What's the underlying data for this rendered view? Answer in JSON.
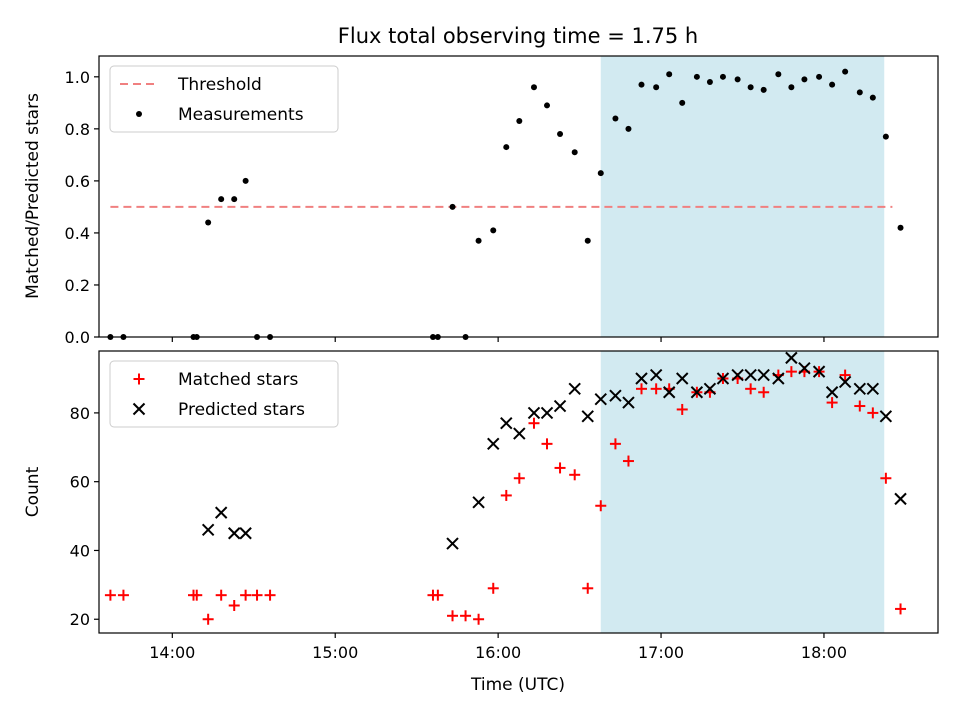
{
  "title": "Flux total observing time = 1.75 h",
  "xlabel": "Time (UTC)",
  "x_ticks": [
    "14:00",
    "15:00",
    "16:00",
    "17:00",
    "18:00"
  ],
  "x_tick_values": [
    14.0,
    15.0,
    16.0,
    17.0,
    18.0
  ],
  "xlim": [
    13.55,
    18.7
  ],
  "shaded_interval": {
    "start": 16.63,
    "end": 18.37,
    "color": "#add8e6"
  },
  "chart_data": [
    {
      "type": "scatter",
      "ylabel": "Matched/Predicted stars",
      "ylim": [
        0.0,
        1.08
      ],
      "y_ticks": [
        "0.0",
        "0.2",
        "0.4",
        "0.6",
        "0.8",
        "1.0"
      ],
      "y_tick_values": [
        0.0,
        0.2,
        0.4,
        0.6,
        0.8,
        1.0
      ],
      "legend": {
        "position": "top-left",
        "entries": [
          "Threshold",
          "Measurements"
        ]
      },
      "threshold": {
        "name": "Threshold",
        "y": 0.5,
        "x_range": [
          13.62,
          18.42
        ],
        "color": "#f08080",
        "style": "dashed"
      },
      "series": [
        {
          "name": "Measurements",
          "color": "#000000",
          "marker": "dot",
          "points": [
            [
              13.62,
              0.0
            ],
            [
              13.7,
              0.0
            ],
            [
              14.13,
              0.0
            ],
            [
              14.15,
              0.0
            ],
            [
              14.22,
              0.44
            ],
            [
              14.3,
              0.53
            ],
            [
              14.38,
              0.53
            ],
            [
              14.45,
              0.6
            ],
            [
              14.52,
              0.0
            ],
            [
              14.6,
              0.0
            ],
            [
              15.6,
              0.0
            ],
            [
              15.63,
              0.0
            ],
            [
              15.72,
              0.5
            ],
            [
              15.8,
              0.0
            ],
            [
              15.88,
              0.37
            ],
            [
              15.97,
              0.41
            ],
            [
              16.05,
              0.73
            ],
            [
              16.13,
              0.83
            ],
            [
              16.22,
              0.96
            ],
            [
              16.3,
              0.89
            ],
            [
              16.38,
              0.78
            ],
            [
              16.47,
              0.71
            ],
            [
              16.55,
              0.37
            ],
            [
              16.63,
              0.63
            ],
            [
              16.72,
              0.84
            ],
            [
              16.8,
              0.8
            ],
            [
              16.88,
              0.97
            ],
            [
              16.97,
              0.96
            ],
            [
              17.05,
              1.01
            ],
            [
              17.13,
              0.9
            ],
            [
              17.22,
              1.0
            ],
            [
              17.3,
              0.98
            ],
            [
              17.38,
              1.0
            ],
            [
              17.47,
              0.99
            ],
            [
              17.55,
              0.96
            ],
            [
              17.63,
              0.95
            ],
            [
              17.72,
              1.01
            ],
            [
              17.8,
              0.96
            ],
            [
              17.88,
              0.99
            ],
            [
              17.97,
              1.0
            ],
            [
              18.05,
              0.97
            ],
            [
              18.13,
              1.02
            ],
            [
              18.22,
              0.94
            ],
            [
              18.3,
              0.92
            ],
            [
              18.38,
              0.77
            ],
            [
              18.47,
              0.42
            ]
          ]
        }
      ]
    },
    {
      "type": "scatter",
      "ylabel": "Count",
      "ylim": [
        16,
        98
      ],
      "y_ticks": [
        "20",
        "40",
        "60",
        "80"
      ],
      "y_tick_values": [
        20,
        40,
        60,
        80
      ],
      "legend": {
        "position": "top-left",
        "entries": [
          "Matched stars",
          "Predicted stars"
        ]
      },
      "series": [
        {
          "name": "Matched stars",
          "color": "#ff0000",
          "marker": "plus",
          "points": [
            [
              13.62,
              27
            ],
            [
              13.7,
              27
            ],
            [
              14.13,
              27
            ],
            [
              14.15,
              27
            ],
            [
              14.22,
              20
            ],
            [
              14.3,
              27
            ],
            [
              14.38,
              24
            ],
            [
              14.45,
              27
            ],
            [
              14.52,
              27
            ],
            [
              14.6,
              27
            ],
            [
              15.6,
              27
            ],
            [
              15.63,
              27
            ],
            [
              15.72,
              21
            ],
            [
              15.8,
              21
            ],
            [
              15.88,
              20
            ],
            [
              15.97,
              29
            ],
            [
              16.05,
              56
            ],
            [
              16.13,
              61
            ],
            [
              16.22,
              77
            ],
            [
              16.3,
              71
            ],
            [
              16.38,
              64
            ],
            [
              16.47,
              62
            ],
            [
              16.55,
              29
            ],
            [
              16.63,
              53
            ],
            [
              16.72,
              71
            ],
            [
              16.8,
              66
            ],
            [
              16.88,
              87
            ],
            [
              16.97,
              87
            ],
            [
              17.05,
              87
            ],
            [
              17.13,
              81
            ],
            [
              17.22,
              86
            ],
            [
              17.3,
              86
            ],
            [
              17.38,
              90
            ],
            [
              17.47,
              90
            ],
            [
              17.55,
              87
            ],
            [
              17.63,
              86
            ],
            [
              17.72,
              91
            ],
            [
              17.8,
              92
            ],
            [
              17.88,
              92
            ],
            [
              17.97,
              92
            ],
            [
              18.05,
              83
            ],
            [
              18.13,
              91
            ],
            [
              18.22,
              82
            ],
            [
              18.3,
              80
            ],
            [
              18.38,
              61
            ],
            [
              18.47,
              23
            ]
          ]
        },
        {
          "name": "Predicted stars",
          "color": "#000000",
          "marker": "cross",
          "points": [
            [
              14.22,
              46
            ],
            [
              14.3,
              51
            ],
            [
              14.38,
              45
            ],
            [
              14.45,
              45
            ],
            [
              15.72,
              42
            ],
            [
              15.88,
              54
            ],
            [
              15.97,
              71
            ],
            [
              16.05,
              77
            ],
            [
              16.13,
              74
            ],
            [
              16.22,
              80
            ],
            [
              16.3,
              80
            ],
            [
              16.38,
              82
            ],
            [
              16.47,
              87
            ],
            [
              16.55,
              79
            ],
            [
              16.63,
              84
            ],
            [
              16.72,
              85
            ],
            [
              16.8,
              83
            ],
            [
              16.88,
              90
            ],
            [
              16.97,
              91
            ],
            [
              17.05,
              86
            ],
            [
              17.13,
              90
            ],
            [
              17.22,
              86
            ],
            [
              17.3,
              87
            ],
            [
              17.38,
              90
            ],
            [
              17.47,
              91
            ],
            [
              17.55,
              91
            ],
            [
              17.63,
              91
            ],
            [
              17.72,
              90
            ],
            [
              17.8,
              96
            ],
            [
              17.88,
              93
            ],
            [
              17.97,
              92
            ],
            [
              18.05,
              86
            ],
            [
              18.13,
              89
            ],
            [
              18.22,
              87
            ],
            [
              18.3,
              87
            ],
            [
              18.38,
              79
            ],
            [
              18.47,
              55
            ]
          ]
        }
      ]
    }
  ]
}
